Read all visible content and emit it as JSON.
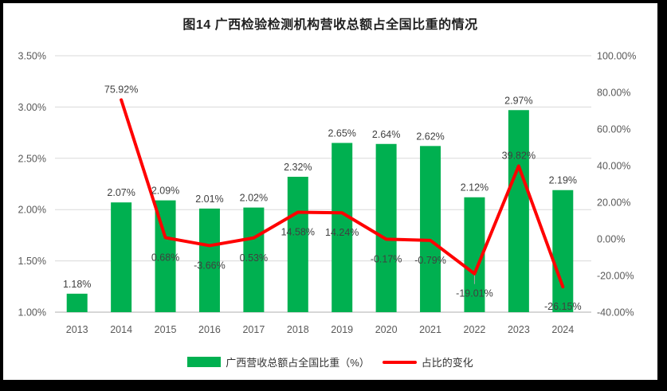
{
  "chart_data": {
    "type": "bar+line combo",
    "title": "图14 广西检验检测机构营收总额占全国比重的情况",
    "categories": [
      "2013",
      "2014",
      "2015",
      "2016",
      "2017",
      "2018",
      "2019",
      "2020",
      "2021",
      "2022",
      "2023",
      "2024"
    ],
    "series": [
      {
        "name": "广西营收总额占全国比重（%）",
        "type": "bar",
        "axis": "left",
        "color": "#00B050",
        "values": [
          1.18,
          2.07,
          2.09,
          2.01,
          2.02,
          2.32,
          2.65,
          2.64,
          2.62,
          2.12,
          2.97,
          2.19
        ],
        "labels": [
          "1.18%",
          "2.07%",
          "2.09%",
          "2.01%",
          "2.02%",
          "2.32%",
          "2.65%",
          "2.64%",
          "2.62%",
          "2.12%",
          "2.97%",
          "2.19%"
        ]
      },
      {
        "name": "占比的变化",
        "type": "line",
        "axis": "right",
        "color": "#FF0000",
        "values": [
          null,
          75.92,
          0.68,
          -3.66,
          0.53,
          14.58,
          14.24,
          -0.17,
          -0.79,
          -19.01,
          39.82,
          -26.15
        ],
        "labels": [
          null,
          "75.92%",
          "0.68%",
          "-3.66%",
          "0.53%",
          "14.58%",
          "14.24%",
          "-0.17%",
          "-0.79%",
          "-19.01%",
          "39.82%",
          "-26.15%"
        ],
        "label_positions": [
          null,
          "above",
          "below",
          "below",
          "below",
          "below",
          "below",
          "below",
          "below",
          "below-leader",
          "above",
          "below"
        ]
      }
    ],
    "left_axis": {
      "min": 1.0,
      "max": 3.5,
      "step": 0.5,
      "tick_labels": [
        "1.00%",
        "1.50%",
        "2.00%",
        "2.50%",
        "3.00%",
        "3.50%"
      ]
    },
    "right_axis": {
      "min": -40,
      "max": 100,
      "step": 20,
      "tick_labels": [
        "-40.00%",
        "-20.00%",
        "0.00%",
        "20.00%",
        "40.00%",
        "60.00%",
        "80.00%",
        "100.00%"
      ]
    },
    "grid": true,
    "legend_position": "bottom",
    "style": {
      "grid_color": "#D9D9D9",
      "axis_line_color": "#BFBFBF",
      "tick_text_color": "#595959",
      "data_label_color": "#404040",
      "background": "#FFFFFF",
      "frame_color": "#000000"
    }
  }
}
